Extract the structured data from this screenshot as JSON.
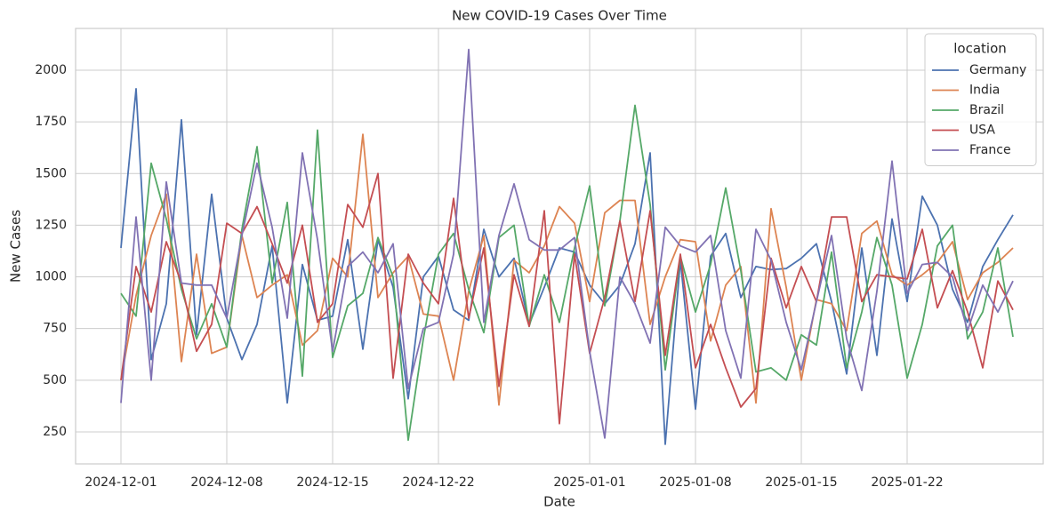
{
  "chart_data": {
    "type": "line",
    "title": "New COVID-19 Cases Over Time",
    "x_label": "Date",
    "y_label": "New Cases",
    "legend_title": "location",
    "legend": "upper right",
    "grid": true,
    "x": [
      "2024-12-01",
      "2024-12-02",
      "2024-12-03",
      "2024-12-04",
      "2024-12-05",
      "2024-12-06",
      "2024-12-07",
      "2024-12-08",
      "2024-12-09",
      "2024-12-10",
      "2024-12-11",
      "2024-12-12",
      "2024-12-13",
      "2024-12-14",
      "2024-12-15",
      "2024-12-16",
      "2024-12-17",
      "2024-12-18",
      "2024-12-19",
      "2024-12-20",
      "2024-12-21",
      "2024-12-22",
      "2024-12-23",
      "2024-12-24",
      "2024-12-25",
      "2024-12-26",
      "2024-12-27",
      "2024-12-28",
      "2024-12-29",
      "2024-12-30",
      "2024-12-31",
      "2025-01-01",
      "2025-01-02",
      "2025-01-03",
      "2025-01-04",
      "2025-01-05",
      "2025-01-06",
      "2025-01-07",
      "2025-01-08",
      "2025-01-09",
      "2025-01-10",
      "2025-01-11",
      "2025-01-12",
      "2025-01-13",
      "2025-01-14",
      "2025-01-15",
      "2025-01-16",
      "2025-01-17",
      "2025-01-18",
      "2025-01-19",
      "2025-01-20",
      "2025-01-21",
      "2025-01-22",
      "2025-01-23",
      "2025-01-24",
      "2025-01-25",
      "2025-01-26",
      "2025-01-27",
      "2025-01-28",
      "2025-01-29"
    ],
    "xlim": [
      "2024-11-28",
      "2025-01-31"
    ],
    "xticks": [
      "2024-12-01",
      "2024-12-08",
      "2024-12-15",
      "2024-12-22",
      "2025-01-01",
      "2025-01-08",
      "2025-01-15",
      "2025-01-22"
    ],
    "ylim": [
      95,
      2202
    ],
    "yticks": [
      250,
      500,
      750,
      1000,
      1250,
      1500,
      1750,
      2000
    ],
    "series": [
      {
        "name": "Germany",
        "color": "#4c72b0",
        "values": [
          1140,
          1910,
          600,
          870,
          1760,
          720,
          1400,
          800,
          600,
          770,
          1150,
          390,
          1060,
          790,
          810,
          1180,
          650,
          1180,
          950,
          410,
          1000,
          1100,
          840,
          790,
          1230,
          1000,
          1090,
          770,
          950,
          1140,
          1120,
          960,
          870,
          960,
          1160,
          1600,
          190,
          1080,
          360,
          1100,
          1210,
          900,
          1050,
          1035,
          1040,
          1090,
          1160,
          880,
          530,
          1140,
          620,
          1280,
          880,
          1390,
          1250,
          940,
          780,
          1050,
          1180,
          1300
        ]
      },
      {
        "name": "India",
        "color": "#dd8452",
        "values": [
          500,
          910,
          1200,
          1400,
          590,
          1110,
          630,
          660,
          1200,
          900,
          960,
          1010,
          670,
          740,
          1090,
          1000,
          1690,
          900,
          1020,
          1100,
          820,
          810,
          500,
          930,
          1200,
          380,
          1080,
          1020,
          1150,
          1340,
          1260,
          880,
          1310,
          1370,
          1370,
          770,
          1000,
          1180,
          1170,
          690,
          960,
          1050,
          390,
          1330,
          950,
          500,
          890,
          870,
          740,
          1210,
          1270,
          1010,
          960,
          1010,
          1070,
          1170,
          890,
          1020,
          1070,
          1140
        ]
      },
      {
        "name": "Brazil",
        "color": "#55a868",
        "values": [
          920,
          810,
          1550,
          1280,
          940,
          700,
          870,
          660,
          1230,
          1630,
          970,
          1360,
          520,
          1710,
          610,
          860,
          920,
          1190,
          1000,
          210,
          700,
          1110,
          1210,
          940,
          730,
          1190,
          1250,
          760,
          1010,
          780,
          1140,
          1440,
          860,
          1270,
          1830,
          1350,
          550,
          1100,
          830,
          1060,
          1430,
          1030,
          540,
          560,
          500,
          720,
          670,
          1120,
          560,
          830,
          1190,
          960,
          510,
          770,
          1150,
          1250,
          700,
          830,
          1140,
          710
        ]
      },
      {
        "name": "USA",
        "color": "#c44e52",
        "values": [
          500,
          1050,
          830,
          1170,
          970,
          640,
          770,
          1260,
          1210,
          1340,
          1160,
          970,
          1250,
          780,
          870,
          1350,
          1240,
          1500,
          510,
          1110,
          970,
          870,
          1380,
          800,
          1140,
          470,
          1010,
          760,
          1320,
          290,
          1110,
          630,
          900,
          1270,
          880,
          1320,
          620,
          1110,
          560,
          770,
          560,
          370,
          460,
          1090,
          850,
          1050,
          880,
          1290,
          1290,
          880,
          1010,
          1000,
          990,
          1230,
          850,
          1030,
          830,
          560,
          980,
          840
        ]
      },
      {
        "name": "France",
        "color": "#8172b3",
        "values": [
          390,
          1290,
          500,
          1460,
          970,
          960,
          960,
          800,
          1200,
          1550,
          1240,
          800,
          1600,
          1180,
          640,
          1050,
          1120,
          1020,
          1160,
          460,
          750,
          780,
          1110,
          2100,
          780,
          1200,
          1450,
          1180,
          1130,
          1130,
          1190,
          640,
          220,
          1000,
          870,
          680,
          1240,
          1150,
          1120,
          1200,
          740,
          510,
          1230,
          1080,
          780,
          550,
          880,
          1200,
          700,
          450,
          930,
          1560,
          920,
          1060,
          1070,
          1000,
          740,
          960,
          830,
          980
        ]
      }
    ]
  }
}
